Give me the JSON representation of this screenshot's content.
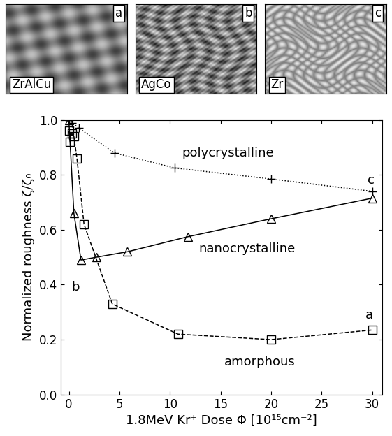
{
  "images": [
    {
      "label": "a",
      "material": "ZrAlCu"
    },
    {
      "label": "b",
      "material": "AgCo"
    },
    {
      "label": "c",
      "material": "Zr"
    }
  ],
  "chart_data": {
    "type": "line",
    "x_label": "1.8MeV Kr⁺ Dose Φ [10¹⁵cm⁻²]",
    "y_label": "Normalized roughness ζ/ζ₀",
    "xlim": [
      -0.8,
      31
    ],
    "ylim": [
      0,
      1.0
    ],
    "xticks": [
      0,
      5,
      10,
      15,
      20,
      25,
      30
    ],
    "yticks": [
      {
        "value": 0,
        "label": "0.0"
      },
      {
        "value": 0.2,
        "label": "0.2"
      },
      {
        "value": 0.4,
        "label": "0.4"
      },
      {
        "value": 0.6,
        "label": "0.6"
      },
      {
        "value": 0.8,
        "label": "0.8"
      },
      {
        "value": 1.0,
        "label": "1.0"
      }
    ],
    "grid": false,
    "series": [
      {
        "name": "polycrystalline",
        "point_label": "c",
        "color": "#000000",
        "marker": "plus",
        "line_style": "dotted",
        "x": [
          0,
          0.3,
          1.0,
          4.5,
          10.5,
          20,
          30
        ],
        "values": [
          1.0,
          0.99,
          0.97,
          0.88,
          0.825,
          0.785,
          0.74
        ]
      },
      {
        "name": "nanocrystalline",
        "point_label": "b",
        "color": "#000000",
        "marker": "triangle",
        "line_style": "solid",
        "x": [
          0,
          0.5,
          1.2,
          2.7,
          5.8,
          11.8,
          20,
          30
        ],
        "values": [
          1.0,
          0.66,
          0.49,
          0.5,
          0.52,
          0.575,
          0.64,
          0.715
        ]
      },
      {
        "name": "amorphous",
        "point_label": "a",
        "color": "#000000",
        "marker": "square",
        "line_style": "dashed",
        "x": [
          0,
          0.1,
          0.3,
          0.5,
          0.8,
          1.5,
          4.3,
          10.8,
          20,
          30
        ],
        "values": [
          0.96,
          0.92,
          0.95,
          0.94,
          0.86,
          0.62,
          0.33,
          0.22,
          0.2,
          0.235
        ]
      }
    ]
  }
}
